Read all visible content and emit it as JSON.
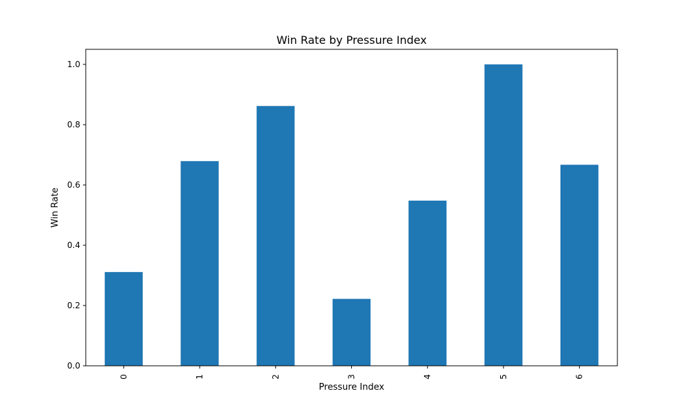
{
  "chart_data": {
    "type": "bar",
    "title": "Win Rate by Pressure Index",
    "xlabel": "Pressure Index",
    "ylabel": "Win Rate",
    "categories": [
      "0",
      "1",
      "2",
      "3",
      "4",
      "5",
      "6"
    ],
    "values": [
      0.311,
      0.679,
      0.862,
      0.222,
      0.548,
      1.0,
      0.667
    ],
    "ylim": [
      0,
      1.05
    ],
    "yticks": [
      "0.0",
      "0.2",
      "0.4",
      "0.6",
      "0.8",
      "1.0"
    ],
    "grid": false,
    "legend": "none",
    "bar_color": "#1f77b4"
  }
}
